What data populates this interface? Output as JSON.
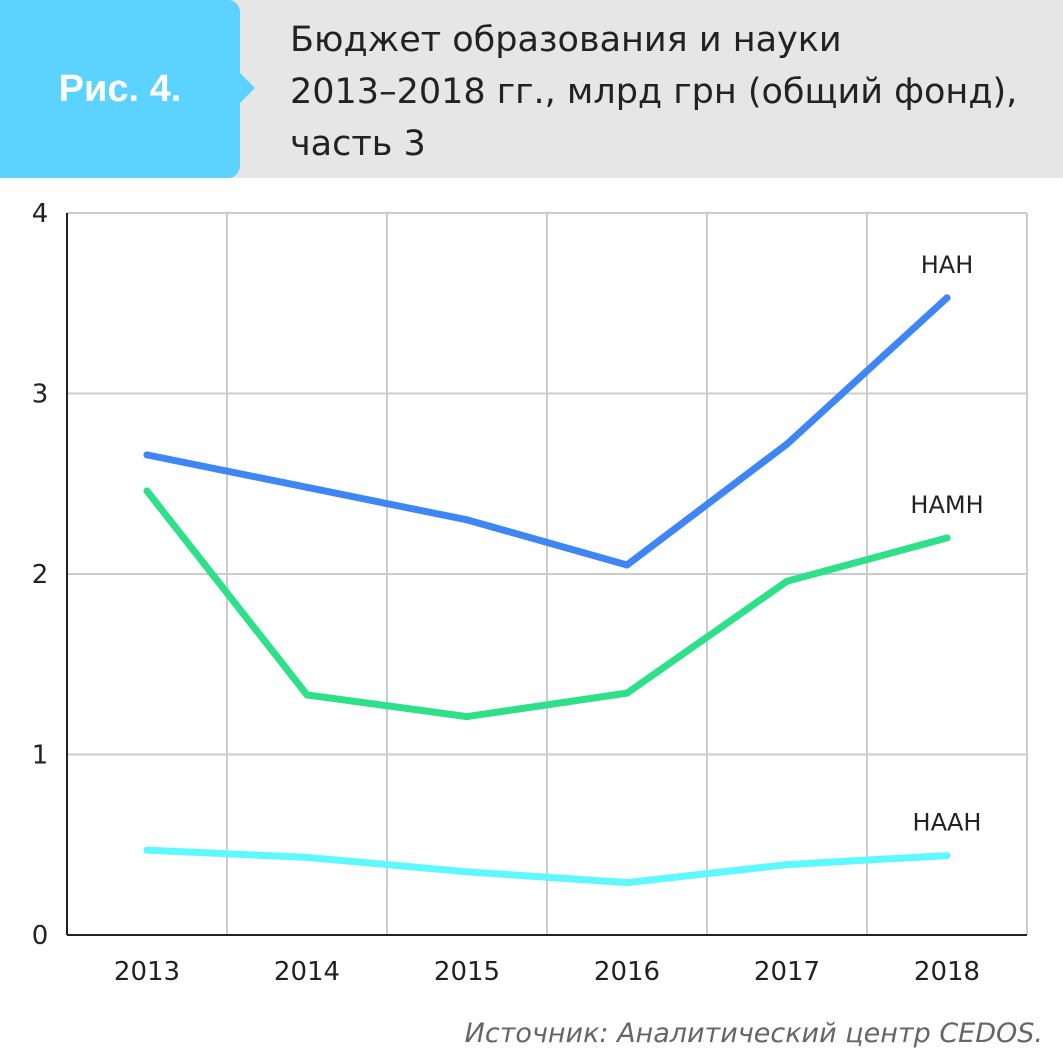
{
  "figure": {
    "label": "Рис. 4.",
    "title_lines": [
      "Бюджет образования и науки",
      "2013–2018 гг., млрд грн (общий фонд),",
      "часть 3"
    ],
    "source": "Источник: Аналитический центр CEDOS."
  },
  "colors": {
    "badge": "#5cd2ff",
    "header": "#e6e6e6",
    "grid": "#cccccc"
  },
  "chart_data": {
    "type": "line",
    "title": "Бюджет образования и науки 2013–2018 гг., млрд грн (общий фонд), часть 3",
    "xlabel": "",
    "ylabel": "",
    "categories": [
      "2013",
      "2014",
      "2015",
      "2016",
      "2017",
      "2018"
    ],
    "yticks": [
      "0",
      "1",
      "2",
      "3",
      "4"
    ],
    "ylim": [
      0,
      4
    ],
    "grid": true,
    "series": [
      {
        "name": "НАН",
        "color": "#3f86f5",
        "values": [
          2.66,
          2.48,
          2.3,
          2.05,
          2.72,
          3.53
        ]
      },
      {
        "name": "НАМН",
        "color": "#2fe08a",
        "values": [
          2.46,
          1.33,
          1.21,
          1.34,
          1.96,
          2.2
        ]
      },
      {
        "name": "НААН",
        "color": "#5ef9ff",
        "values": [
          0.47,
          0.43,
          0.35,
          0.29,
          0.39,
          0.44
        ]
      }
    ]
  }
}
